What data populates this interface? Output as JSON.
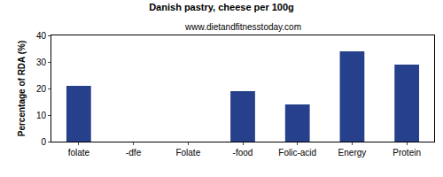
{
  "chart_data": {
    "type": "bar",
    "title": "Danish pastry, cheese per 100g",
    "subtitle": "www.dietandfitnesstoday.com",
    "y_label": "Percentage of RDA (%)",
    "categories": [
      "folate",
      "-dfe",
      "Folate",
      "-food",
      "Folic-acid",
      "Energy",
      "Protein"
    ],
    "values": [
      21,
      0,
      0,
      19,
      14,
      34,
      29
    ],
    "color": "#27408b",
    "ylim": [
      0,
      40
    ],
    "yticks": [
      0,
      10,
      20,
      30,
      40
    ],
    "grid": false
  }
}
